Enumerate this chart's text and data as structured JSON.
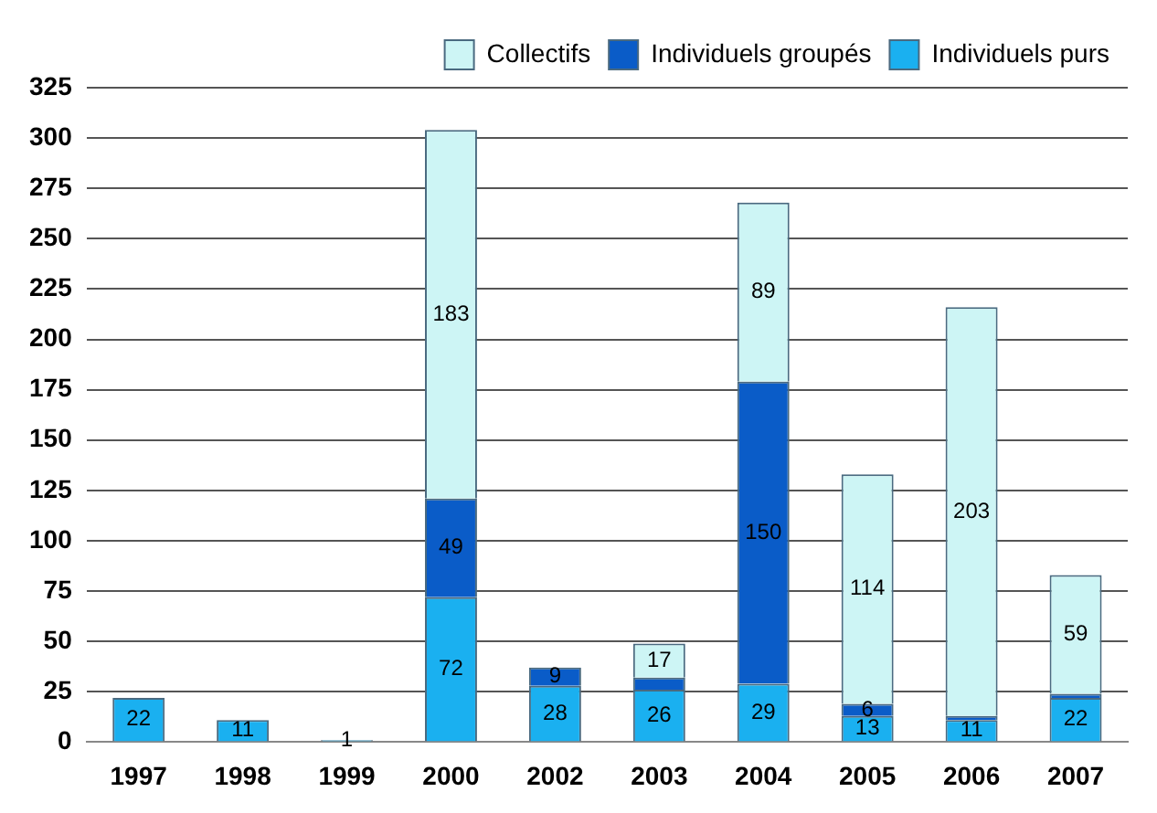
{
  "chart_data": {
    "type": "bar",
    "stacked": true,
    "categories": [
      "1997",
      "1998",
      "1999",
      "2000",
      "2002",
      "2003",
      "2004",
      "2005",
      "2006",
      "2007"
    ],
    "series": [
      {
        "name": "Individuels purs",
        "color": "#1ab0f0",
        "values": [
          22,
          11,
          1,
          72,
          28,
          26,
          29,
          13,
          11,
          22
        ],
        "value_labels": [
          "22",
          "11",
          "1",
          "72",
          "28",
          "26",
          "29",
          "13",
          "11",
          "22"
        ]
      },
      {
        "name": "Individuels groupés",
        "color": "#0a5cc8",
        "values": [
          0,
          0,
          0,
          49,
          9,
          6,
          150,
          6,
          2,
          2
        ],
        "value_labels": [
          null,
          null,
          null,
          "49",
          "9",
          null,
          "150",
          "6",
          null,
          null
        ]
      },
      {
        "name": "Collectifs",
        "color": "#cdf5f5",
        "values": [
          0,
          0,
          0,
          183,
          0,
          17,
          89,
          114,
          203,
          59
        ],
        "value_labels": [
          null,
          null,
          null,
          "183",
          null,
          "17",
          "89",
          "114",
          "203",
          "59"
        ]
      }
    ],
    "ylim": [
      0,
      325
    ],
    "yticks": [
      0,
      25,
      50,
      75,
      100,
      125,
      150,
      175,
      200,
      225,
      250,
      275,
      300,
      325
    ],
    "grid": "y",
    "legend": "top right"
  }
}
